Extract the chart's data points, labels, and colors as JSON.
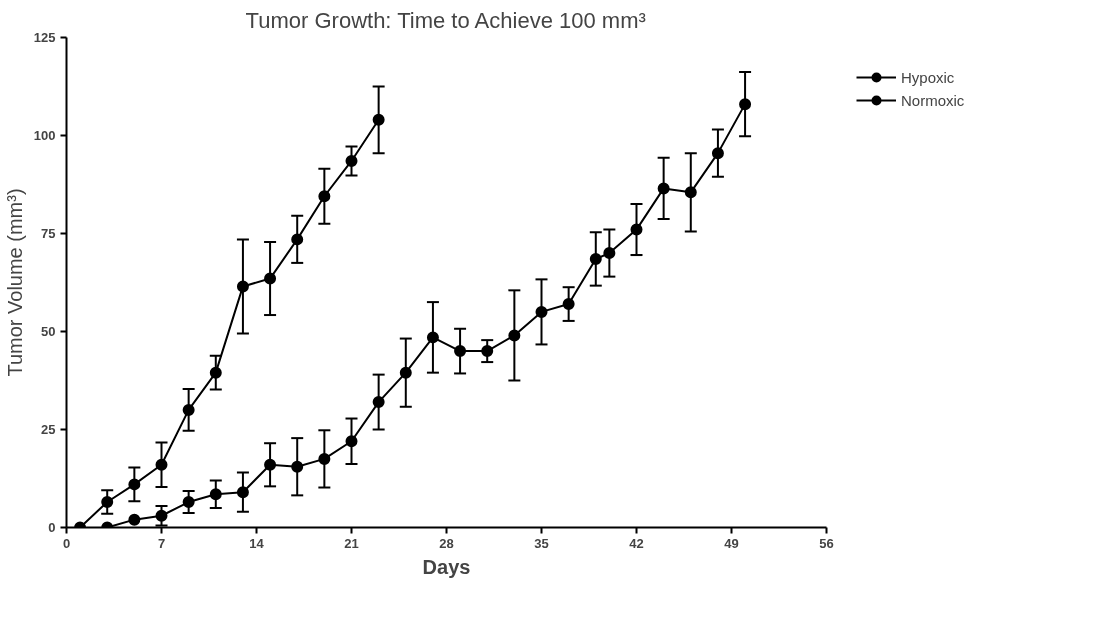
{
  "chart_data": {
    "type": "line",
    "title": "Tumor Growth: Time to Achieve 100 mm³",
    "xlabel": "Days",
    "ylabel": "Tumor Volume (mm³)",
    "xlim": [
      0,
      56
    ],
    "ylim": [
      0,
      125
    ],
    "xticks": [
      0,
      7,
      14,
      21,
      28,
      35,
      42,
      49,
      56
    ],
    "yticks": [
      0,
      25,
      50,
      75,
      100,
      125
    ],
    "grid": false,
    "legend": "right",
    "marker": "circle",
    "line_style": "solid",
    "series": [
      {
        "name": "Hypoxic",
        "color": "#000000",
        "x": [
          1,
          3,
          5,
          7,
          9,
          11,
          13,
          15,
          17,
          19,
          21,
          23
        ],
        "values": [
          0,
          6.5,
          11,
          16,
          30,
          39.5,
          61.5,
          63.5,
          73.5,
          84.5,
          93.5,
          104
        ],
        "errors": [
          null,
          3,
          4.3,
          5.7,
          5.3,
          4.3,
          12,
          9.3,
          6,
          7,
          3.7,
          8.5
        ]
      },
      {
        "name": "Normoxic",
        "color": "#000000",
        "x": [
          3,
          5,
          7,
          9,
          11,
          13,
          15,
          17,
          19,
          21,
          23,
          25,
          27,
          29,
          31,
          33,
          35,
          37,
          39,
          40,
          42,
          44,
          46,
          48,
          50
        ],
        "values": [
          0,
          2,
          3,
          6.5,
          8.5,
          9,
          16,
          15.5,
          17.5,
          22,
          32,
          39.5,
          48.5,
          45,
          45,
          49,
          55,
          57,
          68.5,
          70,
          76,
          86.5,
          85.5,
          95.5,
          108
        ],
        "errors": [
          null,
          null,
          2.5,
          2.8,
          3.5,
          5,
          5.5,
          7.3,
          7.3,
          5.8,
          7,
          8.7,
          9,
          5.7,
          2.8,
          11.5,
          8.3,
          4.3,
          6.8,
          6,
          6.5,
          7.8,
          10,
          6,
          8.2
        ]
      }
    ]
  }
}
